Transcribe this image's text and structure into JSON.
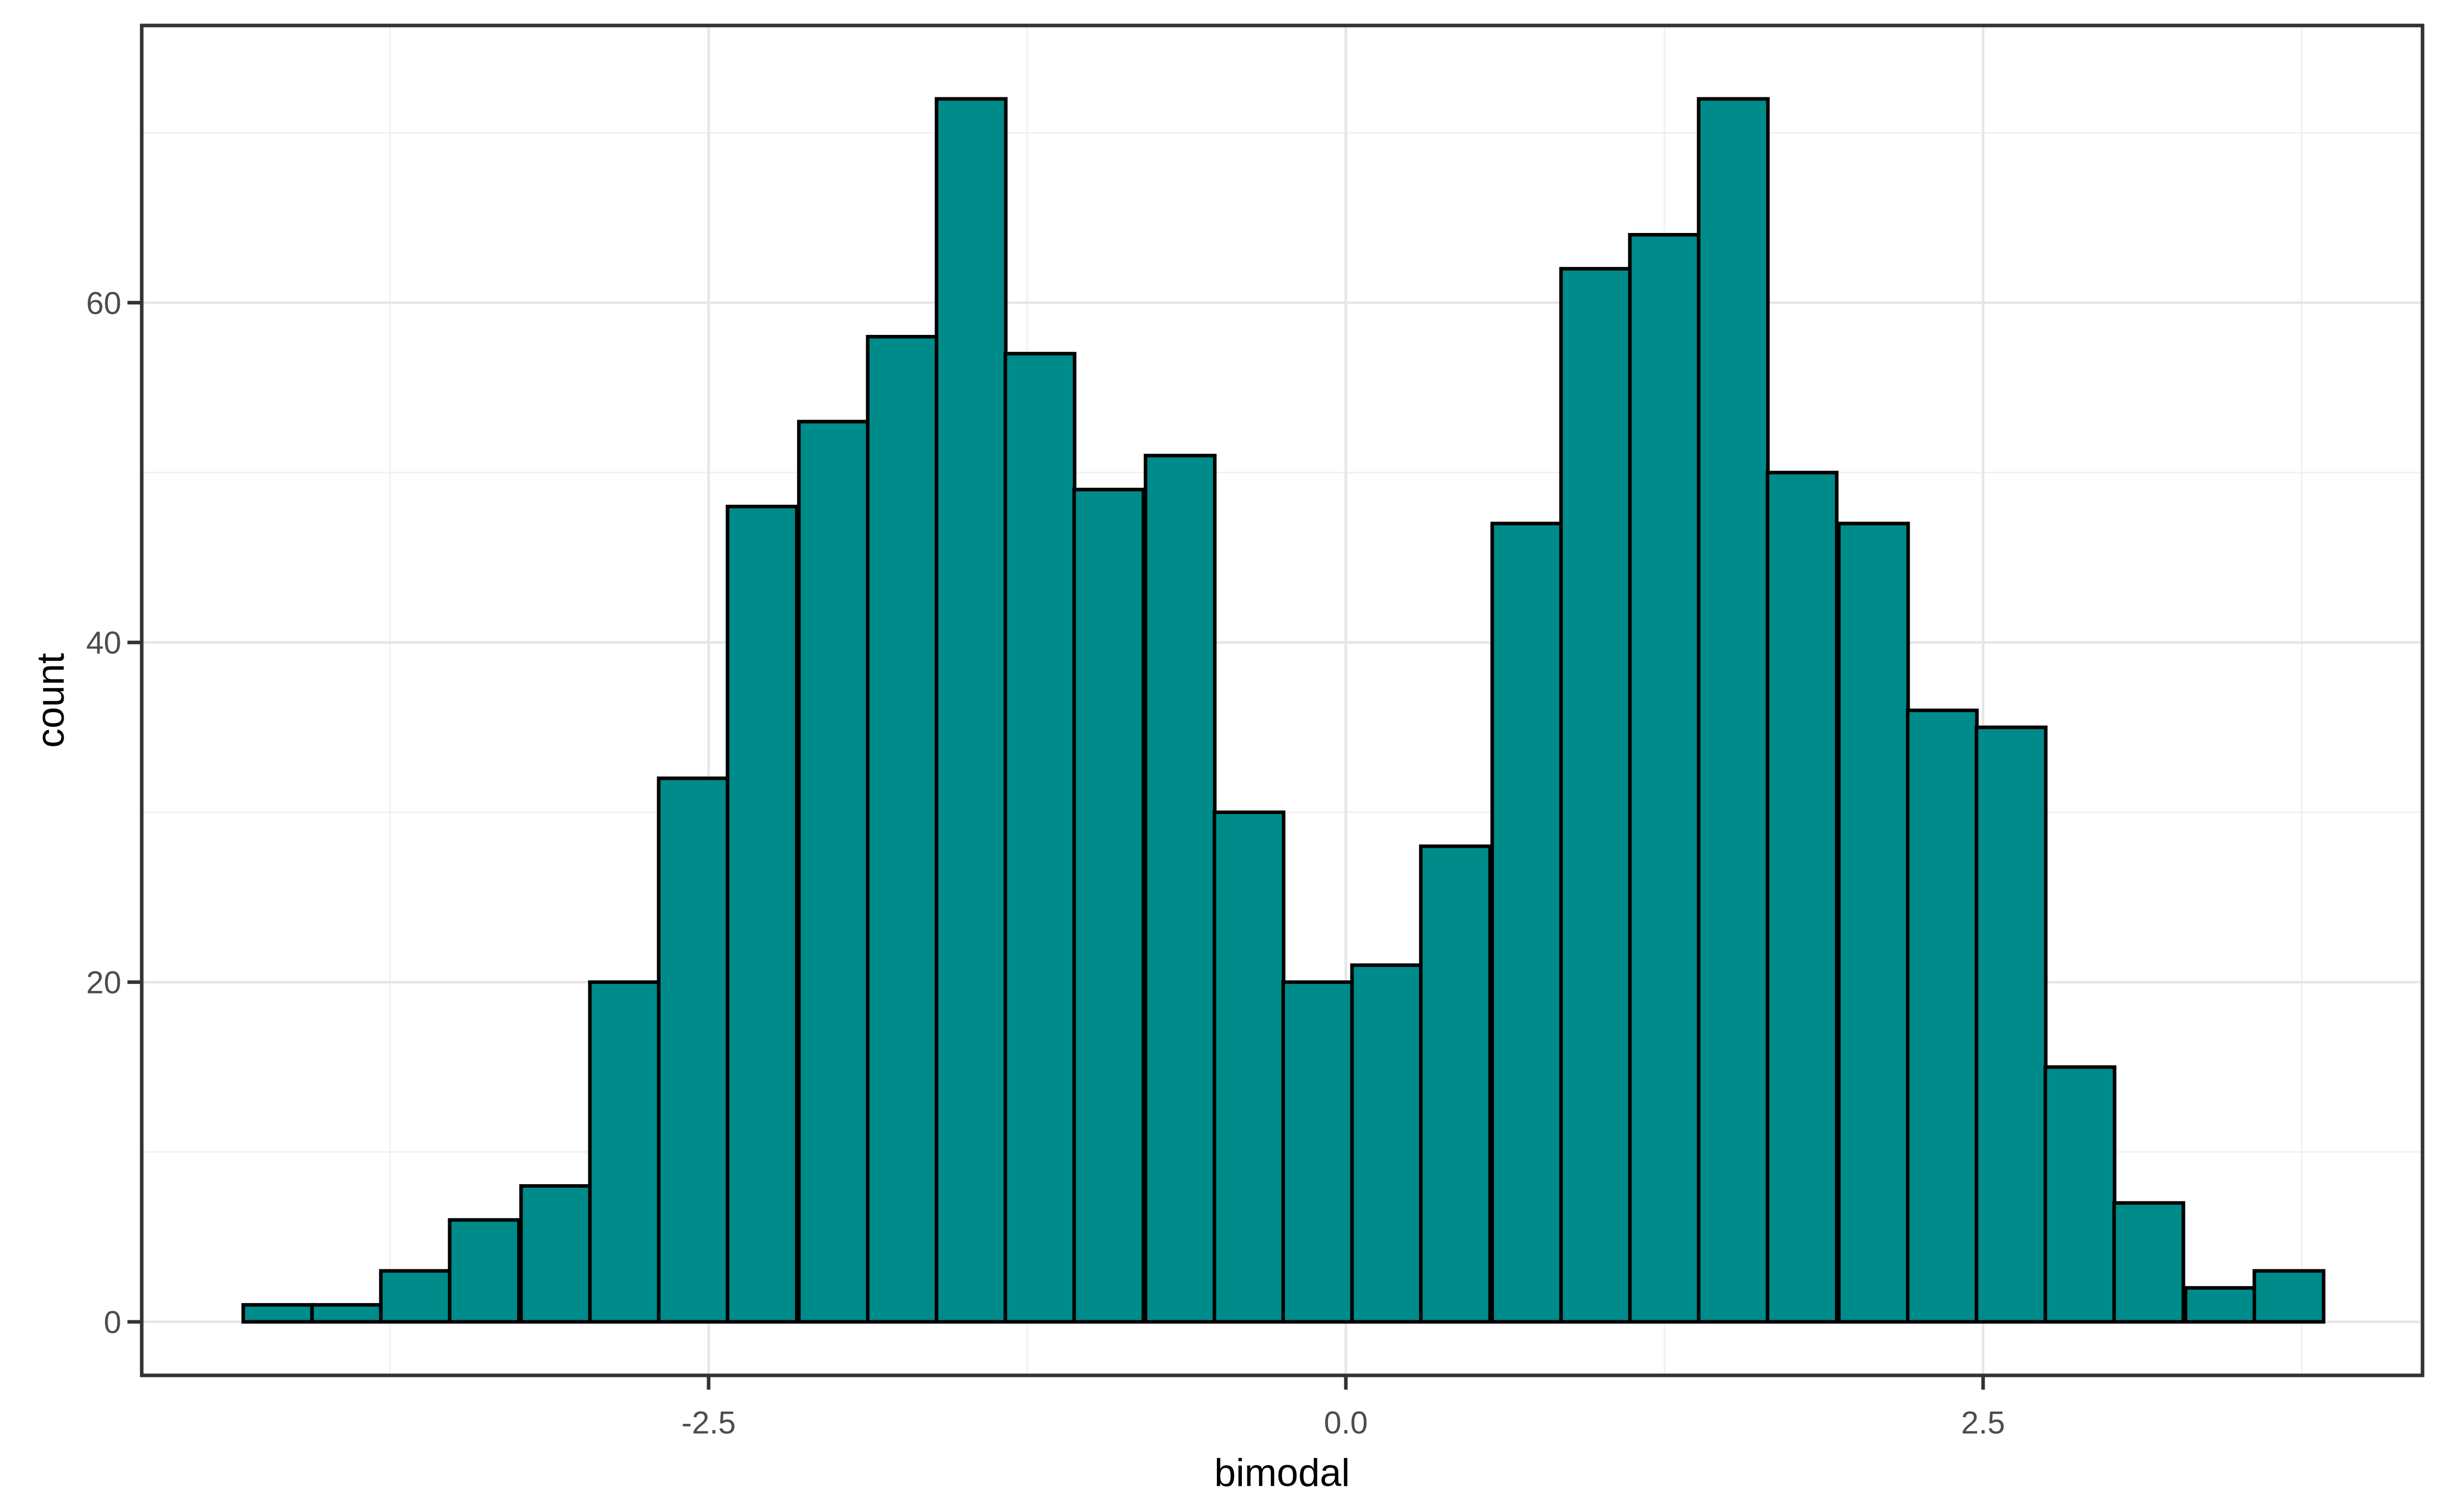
{
  "figure": {
    "background": "#FFFFFF"
  },
  "chart_data": {
    "type": "bar",
    "subtype": "histogram",
    "title": "",
    "xlabel": "bimodal",
    "ylabel": "count",
    "bin_centers": [
      -4.19,
      -3.92,
      -3.65,
      -3.38,
      -3.1,
      -2.83,
      -2.56,
      -2.29,
      -2.01,
      -1.74,
      -1.47,
      -1.2,
      -0.93,
      -0.65,
      -0.38,
      -0.11,
      0.16,
      0.43,
      0.71,
      0.98,
      1.25,
      1.52,
      1.79,
      2.07,
      2.34,
      2.61,
      2.88,
      3.15,
      3.43,
      3.7
    ],
    "values": [
      1,
      1,
      3,
      6,
      8,
      20,
      32,
      48,
      53,
      58,
      72,
      57,
      49,
      51,
      30,
      20,
      21,
      28,
      47,
      62,
      64,
      72,
      50,
      47,
      36,
      35,
      15,
      7,
      2,
      3
    ],
    "binwidth": 0.2717,
    "n_bins": 30,
    "total_n": 998,
    "xlim": [
      -4.72,
      4.22
    ],
    "ylim": [
      -3.15,
      76.3
    ],
    "x_ticks": {
      "values": [
        -2.5,
        0.0,
        2.5
      ],
      "labels": [
        "-2.5",
        "0.0",
        "2.5"
      ]
    },
    "y_ticks": {
      "values": [
        0,
        20,
        40,
        60
      ],
      "labels": [
        "0",
        "20",
        "40",
        "60"
      ]
    },
    "x_minor": [
      -3.75,
      -1.25,
      1.25,
      3.75
    ],
    "y_minor": [
      10,
      30,
      50,
      70
    ],
    "grid": "on",
    "legend": "none",
    "colors": {
      "bar_fill": "#008B8B",
      "bar_stroke": "#000000",
      "panel_background": "#FFFFFF",
      "panel_border": "#333333",
      "grid_major": "#E6E6E6",
      "grid_minor": "#F0F0F0",
      "tick_mark": "#333333",
      "tick_label": "#4D4D4D",
      "axis_title": "#000000"
    }
  }
}
